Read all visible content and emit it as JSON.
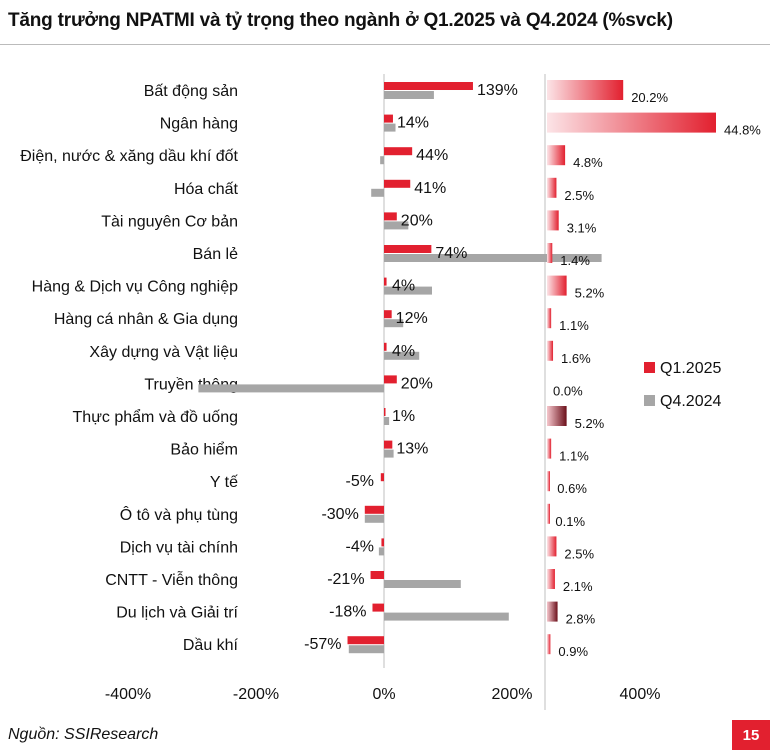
{
  "title": "Tăng trưởng NPATMI và tỷ trọng theo ngành ở Q1.2025 và Q4.2024 (%svck)",
  "source": "Nguồn: SSIResearch",
  "page_number": "15",
  "colors": {
    "q1_2025": "#e2202f",
    "q4_2024": "#a6a6a6",
    "weight_gradient_light": "#fbe3e6",
    "weight_gradient_dark": "#6b0f1a"
  },
  "chart_data": [
    {
      "type": "bar",
      "orientation": "horizontal",
      "title": "",
      "xlabel": "",
      "ylabel": "",
      "xlim": [
        -400,
        400
      ],
      "x_ticks": [
        "-400%",
        "-200%",
        "0%",
        "200%",
        "400%"
      ],
      "x_tick_values": [
        -400,
        -200,
        0,
        200,
        400
      ],
      "legend_position": "right",
      "categories": [
        "Bất động sản",
        "Ngân hàng",
        "Điện, nước & xăng dầu khí đốt",
        "Hóa chất",
        "Tài nguyên Cơ bản",
        "Bán lẻ",
        "Hàng & Dịch vụ Công nghiệp",
        "Hàng cá nhân & Gia dụng",
        "Xây dựng và Vật liệu",
        "Truyền thông",
        "Thực phẩm và đồ uống",
        "Bảo hiểm",
        "Y tế",
        "Ô tô và phụ tùng",
        "Dịch vụ tài chính",
        "CNTT - Viễn thông",
        "Du lịch và Giải trí",
        "Dầu khí"
      ],
      "series": [
        {
          "name": "Q1.2025",
          "color": "#e2202f",
          "values": [
            139,
            14,
            44,
            41,
            20,
            74,
            4,
            12,
            4,
            20,
            1,
            13,
            -5,
            -30,
            -4,
            -21,
            -18,
            -57
          ],
          "labels": [
            "139%",
            "14%",
            "44%",
            "41%",
            "20%",
            "74%",
            "4%",
            "12%",
            "4%",
            "20%",
            "1%",
            "13%",
            "-5%",
            "-30%",
            "-4%",
            "-21%",
            "-18%",
            "-57%"
          ]
        },
        {
          "name": "Q4.2024",
          "color": "#a6a6a6",
          "values": [
            78,
            18,
            -6,
            -20,
            38,
            340,
            75,
            30,
            55,
            -290,
            8,
            15,
            0,
            -30,
            -8,
            120,
            195,
            -55
          ]
        }
      ]
    },
    {
      "type": "bar",
      "orientation": "horizontal",
      "title": "",
      "xlim": [
        0,
        44.8
      ],
      "values": [
        20.2,
        44.8,
        4.8,
        2.5,
        3.1,
        1.4,
        5.2,
        1.1,
        1.6,
        0.0,
        5.2,
        1.1,
        0.6,
        0.1,
        2.5,
        2.1,
        2.8,
        0.9
      ],
      "labels": [
        "20.2%",
        "44.8%",
        "4.8%",
        "2.5%",
        "3.1%",
        "1.4%",
        "5.2%",
        "1.1%",
        "1.6%",
        "0.0%",
        "5.2%",
        "1.1%",
        "0.6%",
        "0.1%",
        "2.5%",
        "2.1%",
        "2.8%",
        "0.9%"
      ]
    }
  ]
}
